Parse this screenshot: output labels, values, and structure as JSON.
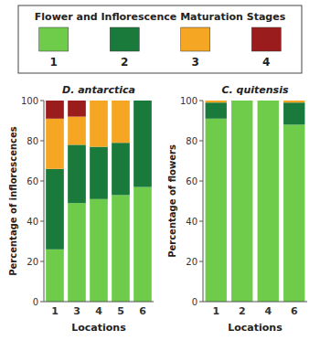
{
  "chart_data": [
    {
      "type": "bar",
      "stacked": true,
      "legend": "top",
      "legend_title": "Flower and Inflorescence Maturation Stages",
      "title": "D. antarctica",
      "xlabel": "Locations",
      "ylabel": "Percentage of inflorescences",
      "categories": [
        "1",
        "3",
        "4",
        "5",
        "6"
      ],
      "series": [
        {
          "name": "1",
          "color": "#6fcc4a",
          "values": [
            26,
            49,
            51,
            53,
            57
          ]
        },
        {
          "name": "2",
          "color": "#1a7a3c",
          "values": [
            40,
            29,
            26,
            26,
            43
          ]
        },
        {
          "name": "3",
          "color": "#f5a623",
          "values": [
            25,
            14,
            23,
            21,
            0
          ]
        },
        {
          "name": "4",
          "color": "#9b1c1c",
          "values": [
            9,
            8,
            0,
            0,
            0
          ]
        }
      ],
      "ylim": [
        0,
        100
      ],
      "yticks": [
        0,
        20,
        40,
        60,
        80,
        100
      ],
      "grid": false
    },
    {
      "type": "bar",
      "stacked": true,
      "title": "C. quitensis",
      "xlabel": "Locations",
      "ylabel": "Percentage of flowers",
      "categories": [
        "1",
        "2",
        "4",
        "6"
      ],
      "series": [
        {
          "name": "1",
          "color": "#6fcc4a",
          "values": [
            91,
            100,
            100,
            88
          ]
        },
        {
          "name": "2",
          "color": "#1a7a3c",
          "values": [
            8,
            0,
            0,
            11
          ]
        },
        {
          "name": "3",
          "color": "#f5a623",
          "values": [
            1,
            0,
            0,
            1
          ]
        },
        {
          "name": "4",
          "color": "#9b1c1c",
          "values": [
            0,
            0,
            0,
            0
          ]
        }
      ],
      "ylim": [
        0,
        100
      ],
      "yticks": [
        0,
        20,
        40,
        60,
        80,
        100
      ],
      "grid": false
    }
  ]
}
